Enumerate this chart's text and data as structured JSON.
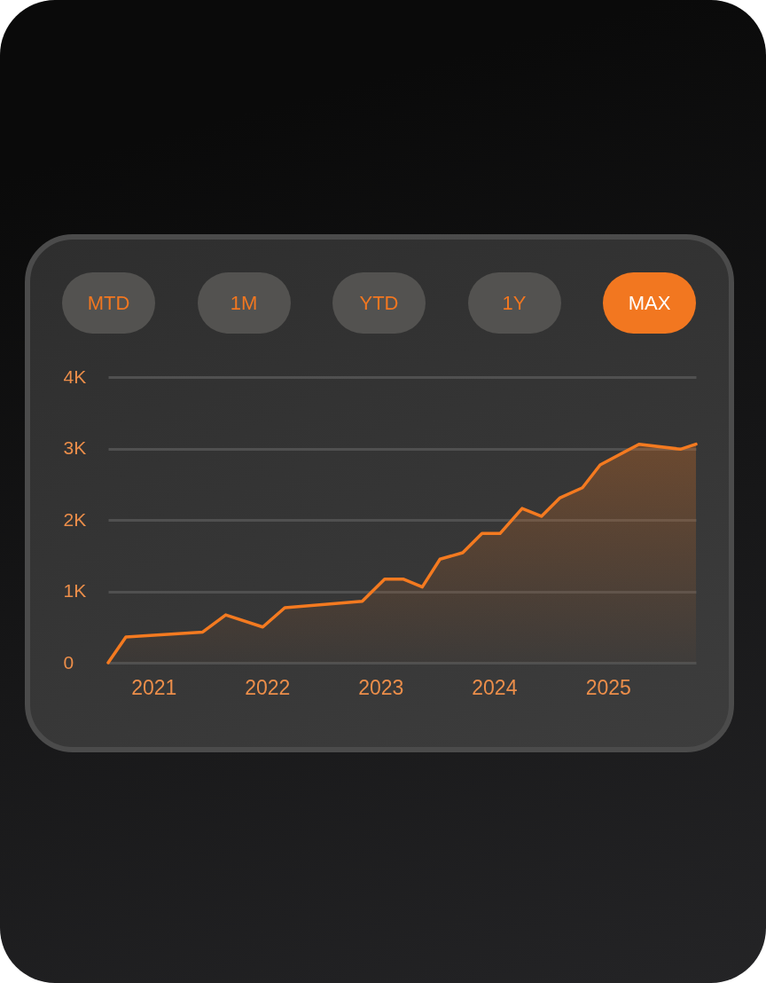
{
  "chart_data": {
    "type": "area",
    "annotations": [
      "MTD",
      "1M",
      "YTD",
      "1Y",
      "MAX"
    ],
    "x": [
      "2020-08-08",
      "2020-10-04",
      "2021-06-08",
      "2021-08-21",
      "2021-12-18",
      "2022-02-27",
      "2022-11-03",
      "2023-01-14",
      "2023-03-16",
      "2023-05-15",
      "2023-07-11",
      "2023-09-22",
      "2023-11-23",
      "2024-01-20",
      "2024-03-31",
      "2024-06-01",
      "2024-07-31",
      "2024-10-11",
      "2024-12-07",
      "2025-04-11",
      "2025-08-22",
      "2025-10-11"
    ],
    "series": [
      {
        "color": "#f47a20",
        "values": [
          0,
          360,
          430,
          670,
          500,
          770,
          860,
          1170,
          1170,
          1060,
          1450,
          1540,
          1810,
          1810,
          2160,
          2050,
          2310,
          2450,
          2770,
          3060,
          2990,
          3060
        ]
      }
    ],
    "xlim": [
      "2020-08-08",
      "2025-10-11"
    ],
    "xticks": [
      "2021",
      "2022",
      "2023",
      "2024",
      "2025"
    ],
    "ylim": [
      0,
      4000
    ],
    "yticks": [
      0,
      {
        "value": 1000,
        "label": "1K"
      },
      {
        "value": 2000,
        "label": "2K"
      },
      {
        "value": 3000,
        "label": "3K"
      },
      {
        "value": 4000,
        "label": "4K"
      }
    ],
    "grid": "y"
  }
}
